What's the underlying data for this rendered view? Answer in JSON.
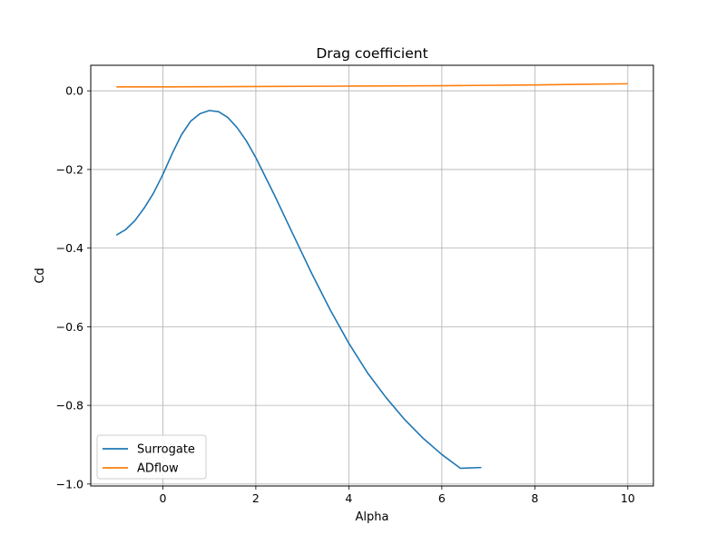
{
  "chart_data": {
    "type": "line",
    "title": "Drag coefficient",
    "xlabel": "Alpha",
    "ylabel": "Cd",
    "xlim": [
      -1.55,
      10.55
    ],
    "ylim": [
      -1.005,
      0.065
    ],
    "xticks": [
      0,
      2,
      4,
      6,
      8,
      10
    ],
    "yticks": [
      0.0,
      -0.2,
      -0.4,
      -0.6,
      -0.8,
      -1.0
    ],
    "xtick_labels": [
      "0",
      "2",
      "4",
      "6",
      "8",
      "10"
    ],
    "ytick_labels": [
      "0.0",
      "−0.2",
      "−0.4",
      "−0.6",
      "−0.8",
      "−1.0"
    ],
    "grid": true,
    "legend_position": "lower-left",
    "series": [
      {
        "name": "Surrogate",
        "color": "#1f77b4",
        "x": [
          -1.0,
          -0.8,
          -0.6,
          -0.4,
          -0.2,
          0.0,
          0.2,
          0.4,
          0.6,
          0.8,
          1.0,
          1.2,
          1.4,
          1.6,
          1.8,
          2.0,
          2.4,
          2.8,
          3.2,
          3.6,
          4.0,
          4.4,
          4.8,
          5.2,
          5.6,
          6.0,
          6.4,
          6.85
        ],
        "y": [
          -0.367,
          -0.353,
          -0.33,
          -0.298,
          -0.26,
          -0.213,
          -0.16,
          -0.112,
          -0.077,
          -0.058,
          -0.05,
          -0.053,
          -0.068,
          -0.094,
          -0.128,
          -0.17,
          -0.265,
          -0.365,
          -0.464,
          -0.557,
          -0.642,
          -0.717,
          -0.78,
          -0.836,
          -0.884,
          -0.925,
          -0.96,
          -0.958
        ]
      },
      {
        "name": "ADflow",
        "color": "#ff7f0e",
        "x": [
          -1.0,
          0.0,
          2.0,
          4.0,
          6.0,
          8.0,
          10.0
        ],
        "y": [
          0.01,
          0.01,
          0.011,
          0.012,
          0.013,
          0.015,
          0.018
        ]
      }
    ]
  }
}
